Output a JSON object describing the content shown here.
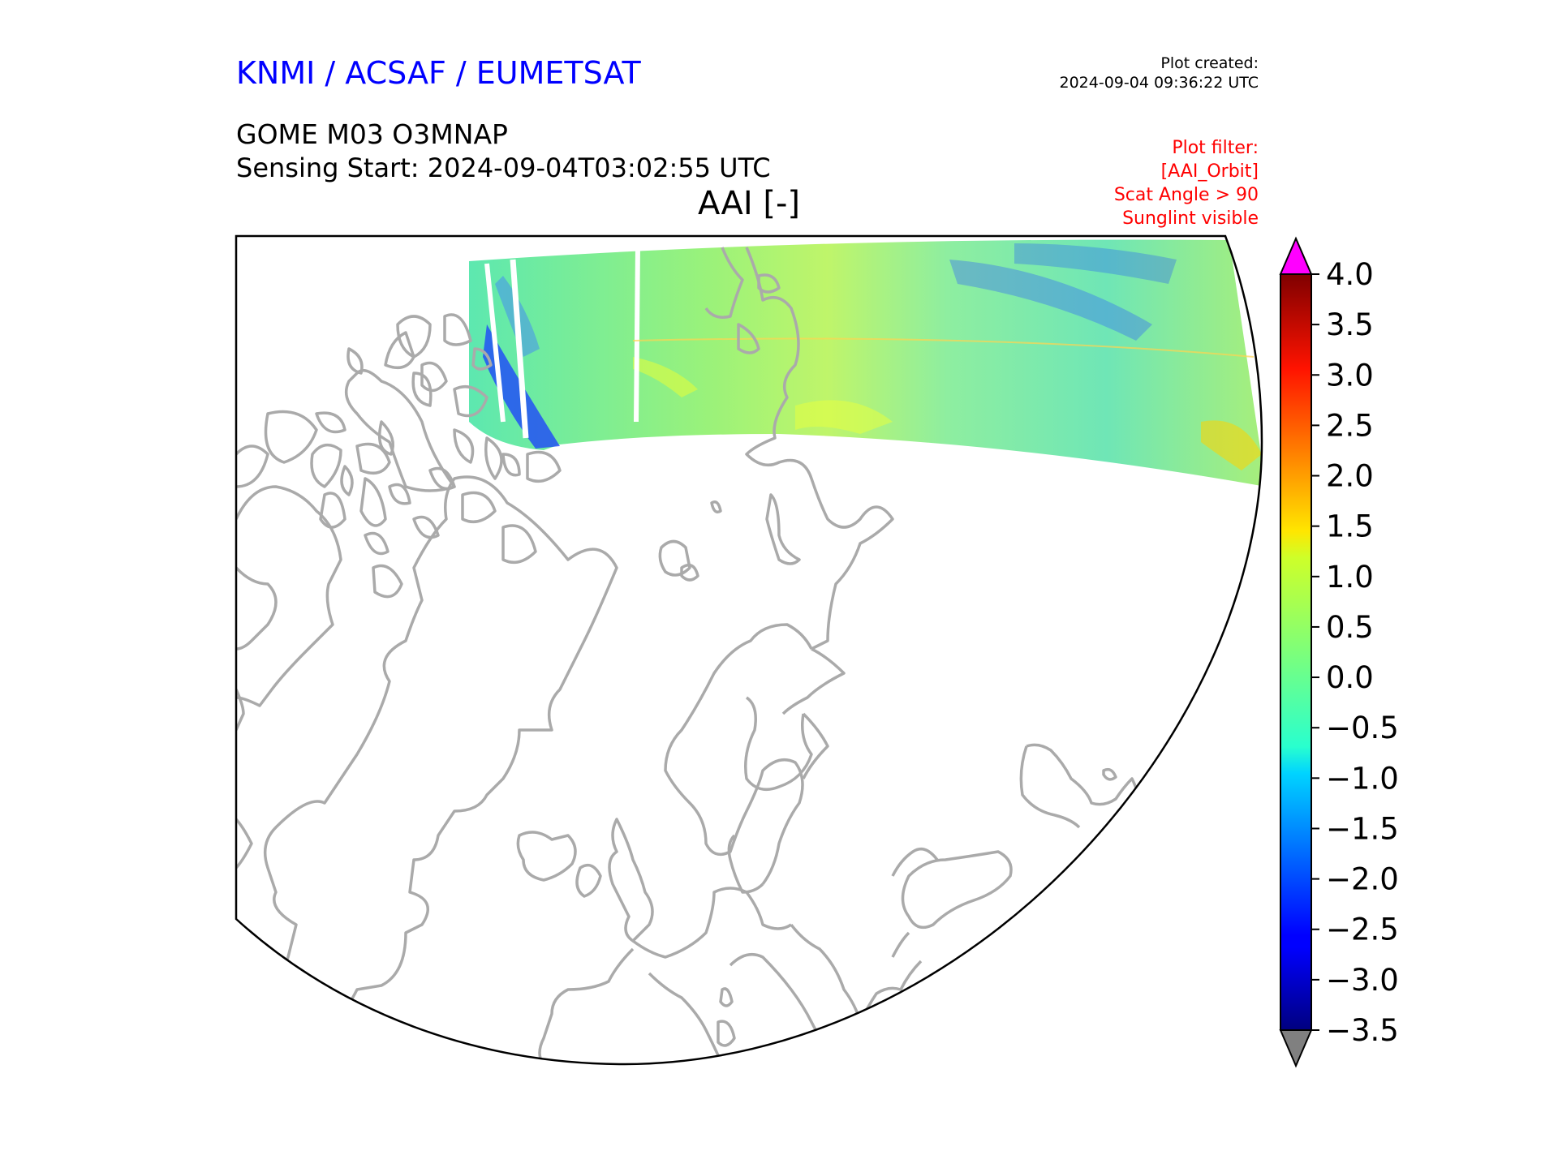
{
  "header": {
    "organization": "KNMI / ACSAF / EUMETSAT",
    "plot_created_label": "Plot created:",
    "plot_created_time": "2024-09-04 09:36:22 UTC",
    "product": "GOME M03 O3MNAP",
    "sensing_start": "Sensing Start: 2024-09-04T03:02:55 UTC",
    "variable": "AAI [-]"
  },
  "filter": {
    "label": "Plot filter:",
    "orbit": "[AAI_Orbit]",
    "scat_angle": "Scat Angle > 90",
    "sunglint": "Sunglint visible"
  },
  "colorbar": {
    "min": -3.5,
    "max": 4.0,
    "ticks": [
      "4.0",
      "3.5",
      "3.0",
      "2.5",
      "2.0",
      "1.5",
      "1.0",
      "0.5",
      "0.0",
      "−0.5",
      "−1.0",
      "−1.5",
      "−2.0",
      "−2.5",
      "−3.0",
      "−3.5"
    ],
    "colormap": "jet",
    "over_color": "#ff00ff",
    "under_color": "#808080"
  },
  "map": {
    "projection": "north-polar-stereographic",
    "coastline_color": "#aaaaaa",
    "swath_dominant_value_range": [
      -1.0,
      1.0
    ]
  }
}
